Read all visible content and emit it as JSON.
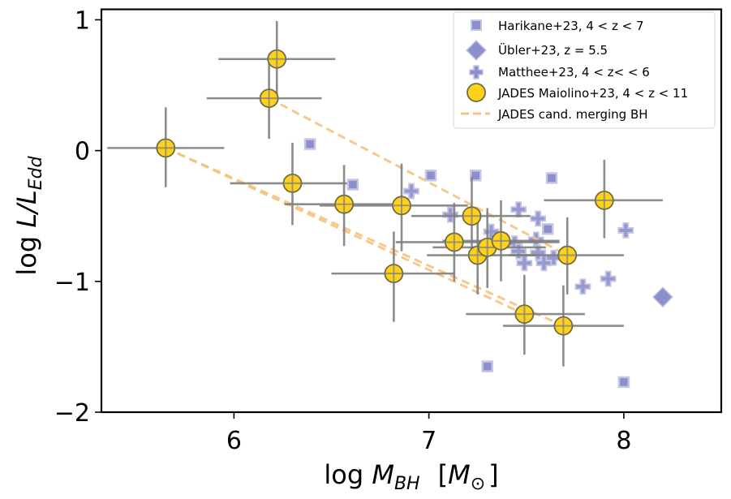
{
  "chart_data": {
    "type": "scatter",
    "title": "",
    "xlabel": "log M_BH [M_⊙]",
    "ylabel": "log L/L_Edd",
    "xlabel_parts": {
      "prefix": "log ",
      "var": "M",
      "sub": "BH",
      "unit_open": "[",
      "unit_var": "M",
      "unit_sub": "⊙",
      "unit_close": "]"
    },
    "ylabel_parts": {
      "prefix": "log ",
      "var": "L/L",
      "sub": "Edd"
    },
    "xlim": [
      5.32,
      8.5
    ],
    "ylim": [
      -2.0,
      1.08
    ],
    "xticks": [
      6,
      7,
      8
    ],
    "xtick_labels": [
      "6",
      "7",
      "8"
    ],
    "yticks": [
      1,
      0,
      -1,
      -2
    ],
    "ytick_labels": [
      "1",
      "0",
      "−1",
      "−2"
    ],
    "grid": false,
    "legend_position": "top-right",
    "colors": {
      "harikane": "#8c8fcc",
      "ubler": "#8c8fcc",
      "matthee": "#8c8fcc",
      "jades_fill": "#ffd11a",
      "jades_edge": "#6e6b45",
      "errorbar": "#808080",
      "merging": "#f5c27f"
    },
    "series": [
      {
        "name": "Harikane+23",
        "legend_label": "Harikane+23, 4 < z < 7",
        "marker": "square",
        "points": [
          {
            "x": 6.39,
            "y": 0.05
          },
          {
            "x": 6.61,
            "y": -0.26
          },
          {
            "x": 7.01,
            "y": -0.19
          },
          {
            "x": 7.24,
            "y": -0.19
          },
          {
            "x": 7.63,
            "y": -0.21
          },
          {
            "x": 7.61,
            "y": -0.6
          },
          {
            "x": 7.3,
            "y": -1.65
          },
          {
            "x": 8.0,
            "y": -1.77
          }
        ]
      },
      {
        "name": "Übler+23",
        "legend_label": "Übler+23, z = 5.5",
        "marker": "diamond",
        "points": [
          {
            "x": 8.2,
            "y": -1.12
          }
        ]
      },
      {
        "name": "Matthee+23",
        "legend_label": "Matthee+23, 4 < z< < 6",
        "marker": "plus",
        "points": [
          {
            "x": 6.91,
            "y": -0.31
          },
          {
            "x": 7.11,
            "y": -0.49
          },
          {
            "x": 7.46,
            "y": -0.45
          },
          {
            "x": 7.56,
            "y": -0.52
          },
          {
            "x": 7.32,
            "y": -0.62
          },
          {
            "x": 7.44,
            "y": -0.71
          },
          {
            "x": 7.55,
            "y": -0.68
          },
          {
            "x": 7.46,
            "y": -0.77
          },
          {
            "x": 7.49,
            "y": -0.86
          },
          {
            "x": 7.59,
            "y": -0.86
          },
          {
            "x": 7.64,
            "y": -0.82
          },
          {
            "x": 7.56,
            "y": -0.78
          },
          {
            "x": 8.01,
            "y": -0.61
          },
          {
            "x": 7.92,
            "y": -0.98
          },
          {
            "x": 7.79,
            "y": -1.04
          }
        ]
      },
      {
        "name": "JADES Maiolino+23",
        "legend_label": "JADES Maiolino+23, 4 < z < 11",
        "marker": "circle",
        "points": [
          {
            "id": "A",
            "x": 5.65,
            "y": 0.02,
            "xmin": 5.35,
            "xmax": 5.95,
            "ymin": -0.28,
            "ymax": 0.33
          },
          {
            "id": "B",
            "x": 6.22,
            "y": 0.7,
            "xmin": 5.92,
            "xmax": 6.52,
            "ymin": 0.4,
            "ymax": 0.99
          },
          {
            "id": "C",
            "x": 6.18,
            "y": 0.4,
            "xmin": 5.86,
            "xmax": 6.45,
            "ymin": 0.09,
            "ymax": 0.7
          },
          {
            "id": "D",
            "x": 6.3,
            "y": -0.25,
            "xmin": 5.98,
            "xmax": 6.58,
            "ymin": -0.57,
            "ymax": 0.06
          },
          {
            "id": "E",
            "x": 6.565,
            "y": -0.41,
            "xmin": 6.26,
            "xmax": 6.87,
            "ymin": -0.73,
            "ymax": -0.11
          },
          {
            "id": "F",
            "x": 6.86,
            "y": -0.42,
            "xmin": 6.44,
            "xmax": 7.2,
            "ymin": -0.77,
            "ymax": -0.1
          },
          {
            "id": "G",
            "x": 6.82,
            "y": -0.94,
            "xmin": 6.5,
            "xmax": 7.13,
            "ymin": -1.31,
            "ymax": -0.62
          },
          {
            "id": "H",
            "x": 7.22,
            "y": -0.5,
            "xmin": 6.91,
            "xmax": 7.52,
            "ymin": -0.8,
            "ymax": -0.2
          },
          {
            "id": "I",
            "x": 7.13,
            "y": -0.7,
            "xmin": 6.83,
            "xmax": 7.67,
            "ymin": -1.0,
            "ymax": -0.4
          },
          {
            "id": "J",
            "x": 7.25,
            "y": -0.8,
            "xmin": 6.99,
            "xmax": 7.55,
            "ymin": -1.1,
            "ymax": -0.54
          },
          {
            "id": "K",
            "x": 7.3,
            "y": -0.74,
            "xmin": 7.02,
            "xmax": 7.6,
            "ymin": -1.05,
            "ymax": -0.44
          },
          {
            "id": "L",
            "x": 7.37,
            "y": -0.69,
            "xmin": 7.07,
            "xmax": 7.67,
            "ymin": -1.0,
            "ymax": -0.38
          },
          {
            "id": "M",
            "x": 7.9,
            "y": -0.38,
            "xmin": 7.59,
            "xmax": 8.2,
            "ymin": -0.67,
            "ymax": -0.07
          },
          {
            "id": "N",
            "x": 7.71,
            "y": -0.8,
            "xmin": 7.41,
            "xmax": 8.0,
            "ymin": -1.1,
            "ymax": -0.51
          },
          {
            "id": "O",
            "x": 7.49,
            "y": -1.25,
            "xmin": 7.19,
            "xmax": 7.8,
            "ymin": -1.56,
            "ymax": -0.95
          },
          {
            "id": "P",
            "x": 7.69,
            "y": -1.34,
            "xmin": 7.38,
            "xmax": 8.0,
            "ymin": -1.65,
            "ymax": -1.03
          }
        ]
      },
      {
        "name": "JADES cand. merging BH",
        "legend_label": "JADES cand. merging BH",
        "marker": "dashed-line",
        "segments": [
          {
            "from": {
              "x": 6.18,
              "y": 0.4
            },
            "to": {
              "x": 7.71,
              "y": -0.8
            }
          },
          {
            "from": {
              "x": 5.65,
              "y": 0.02
            },
            "to": {
              "x": 7.49,
              "y": -1.25
            }
          },
          {
            "from": {
              "x": 5.65,
              "y": 0.02
            },
            "to": {
              "x": 7.69,
              "y": -1.34
            }
          }
        ]
      }
    ]
  }
}
